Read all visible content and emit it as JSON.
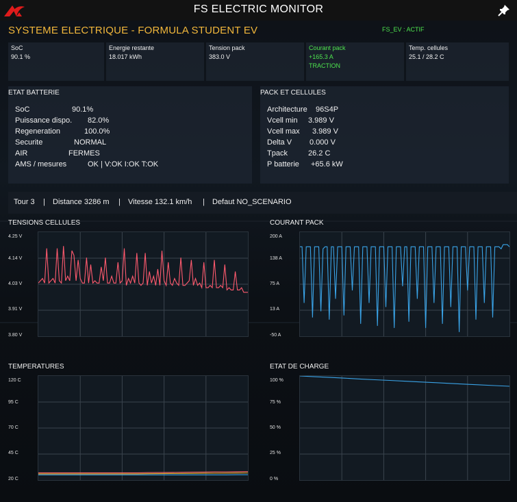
{
  "window": {
    "title": "FS ELECTRIC MONITOR",
    "logo_icon": "red-logo-icon",
    "pin_icon": "pin-icon"
  },
  "header": {
    "title": "SYSTEME ELECTRIQUE - FORMULA STUDENT EV",
    "status": "FS_EV : ACTIF",
    "title_color": "#f2b73b",
    "status_color": "#4ee44e"
  },
  "metrics": [
    {
      "label": "SoC",
      "value": "90.1 %",
      "sub": ""
    },
    {
      "label": "Energie restante",
      "value": "18.017 kWh",
      "sub": ""
    },
    {
      "label": "Tension pack",
      "value": "383.0 V",
      "sub": ""
    },
    {
      "label": "Courant pack",
      "value": "+165.3 A",
      "sub": "TRACTION"
    },
    {
      "label": "Temp. cellules",
      "value": "25.1 / 28.2 C",
      "sub": ""
    }
  ],
  "battery_panel": {
    "title": "ETAT BATTERIE",
    "rows": [
      {
        "label": "SoC",
        "value": "90.1%"
      },
      {
        "label": "Puissance dispo.",
        "value": "82.0%"
      },
      {
        "label": "Regeneration",
        "value": "100.0%"
      },
      {
        "label": "Securite",
        "value": "NORMAL"
      },
      {
        "label": "AIR",
        "value": "FERMES"
      },
      {
        "label": "AMS / mesures",
        "value": "OK | V:OK I:OK T:OK"
      }
    ]
  },
  "pack_panel": {
    "title": "PACK ET CELLULES",
    "rows": [
      {
        "label": "Architecture",
        "value": "96S4P"
      },
      {
        "label": "Vcell min",
        "value": "3.989 V"
      },
      {
        "label": "Vcell max",
        "value": "3.989 V"
      },
      {
        "label": "Delta V",
        "value": "0.000 V"
      },
      {
        "label": "Tpack",
        "value": "26.2 C"
      },
      {
        "label": "P batterie",
        "value": "+65.6 kW"
      }
    ]
  },
  "info_bar": {
    "lap": "Tour 3",
    "distance": "Distance 3286 m",
    "speed": "Vitesse 132.1 km/h",
    "fault": "Defaut NO_SCENARIO",
    "sep": "|"
  },
  "chart_data": [
    {
      "type": "line",
      "title": "TENSIONS CELLULES",
      "ylim": [
        3.8,
        4.25
      ],
      "yticks": [
        "4.25 V",
        "4.14 V",
        "4.03 V",
        "3.91 V",
        "3.80 V"
      ],
      "grid": true,
      "color": "#ff5a6e",
      "series": [
        {
          "values": [
            4.03,
            4.04,
            4.05,
            4.03,
            4.18,
            4.03,
            4.04,
            4.05,
            4.03,
            4.18,
            4.04,
            4.03,
            4.19,
            4.04,
            4.06,
            4.04,
            4.17,
            4.15,
            4.04,
            4.13,
            4.05,
            4.03,
            4.03,
            4.14,
            4.03,
            4.11,
            4.03,
            4.04,
            4.03,
            4.03,
            4.1,
            4.04,
            4.14,
            4.03,
            4.03,
            4.06,
            4.03,
            4.03,
            4.12,
            4.03,
            4.04,
            4.18,
            4.02,
            4.05,
            4.03,
            4.06,
            4.03,
            4.16,
            4.03,
            4.02,
            4.03,
            4.16,
            4.02,
            4.08,
            4.03,
            4.06,
            4.02,
            4.09,
            4.02,
            4.17,
            4.04,
            4.02,
            4.12,
            4.03,
            4.02,
            4.05,
            4.03,
            4.02,
            4.14,
            4.02,
            4.02,
            4.03,
            4.04,
            4.13,
            4.02,
            4.05,
            4.02,
            4.03,
            4.01,
            4.12,
            4.01,
            4.01,
            4.02,
            4.01,
            4.13,
            4.01,
            4.01,
            4.02,
            4.01,
            4.11,
            4.0,
            4.01,
            4.0,
            4.0,
            4.08,
            4.0,
            4.0,
            4.01,
            3.99,
            3.99,
            3.99
          ]
        }
      ]
    },
    {
      "type": "line",
      "title": "COURANT PACK",
      "ylim": [
        -50,
        200
      ],
      "yticks": [
        "200 A",
        "138 A",
        "75 A",
        "13 A",
        "-50 A"
      ],
      "grid": true,
      "color": "#3aa4e8",
      "series": [
        {
          "values": [
            165,
            165,
            30,
            165,
            165,
            165,
            -5,
            165,
            165,
            165,
            10,
            160,
            165,
            165,
            -10,
            165,
            165,
            40,
            165,
            165,
            165,
            0,
            165,
            165,
            165,
            60,
            165,
            165,
            165,
            -20,
            165,
            165,
            165,
            30,
            165,
            165,
            165,
            -25,
            165,
            165,
            165,
            20,
            165,
            165,
            165,
            -30,
            165,
            165,
            165,
            70,
            165,
            165,
            -15,
            165,
            165,
            165,
            40,
            165,
            165,
            165,
            -30,
            165,
            165,
            165,
            30,
            165,
            165,
            165,
            -20,
            165,
            165,
            165,
            20,
            165,
            165,
            165,
            -40,
            165,
            165,
            165,
            60,
            165,
            165,
            165,
            -10,
            165,
            165,
            165,
            30,
            165,
            165,
            165,
            -5,
            165,
            165,
            165,
            160,
            170,
            170,
            170,
            165
          ]
        }
      ]
    },
    {
      "type": "line",
      "title": "TEMPERATURES",
      "ylim": [
        20,
        120
      ],
      "yticks": [
        "120 C",
        "95 C",
        "70 C",
        "45 C",
        "20 C"
      ],
      "grid": true,
      "series": [
        {
          "color": "#ff6b6b",
          "values": [
            27,
            27,
            27,
            27,
            27,
            27,
            27,
            27,
            27,
            27,
            27.2,
            27.3,
            27.4,
            27.5,
            27.6,
            27.7,
            27.8,
            27.9,
            28.0,
            28.2
          ]
        },
        {
          "color": "#f2b73b",
          "values": [
            26,
            26,
            26,
            26,
            26,
            26,
            26,
            26,
            26,
            26,
            26.1,
            26.2,
            26.3,
            26.3,
            26.4,
            26.5,
            26.6,
            26.7,
            26.8,
            26.9
          ]
        },
        {
          "color": "#3aa4e8",
          "values": [
            25,
            25,
            25,
            25,
            25,
            25,
            25,
            25,
            25,
            25,
            25,
            25,
            25,
            25,
            25,
            25,
            25,
            25,
            25.1,
            25.1
          ]
        }
      ]
    },
    {
      "type": "line",
      "title": "ETAT DE CHARGE",
      "ylim": [
        0,
        100
      ],
      "yticks": [
        "100 %",
        "75 %",
        "50 %",
        "25 %",
        "0 %"
      ],
      "grid": true,
      "color": "#3aa4e8",
      "series": [
        {
          "values": [
            100,
            99.3,
            98.6,
            97.9,
            97.1,
            96.4,
            95.7,
            95.0,
            94.3,
            93.6,
            92.9,
            92.2,
            91.5,
            90.8,
            90.1
          ]
        }
      ]
    }
  ]
}
